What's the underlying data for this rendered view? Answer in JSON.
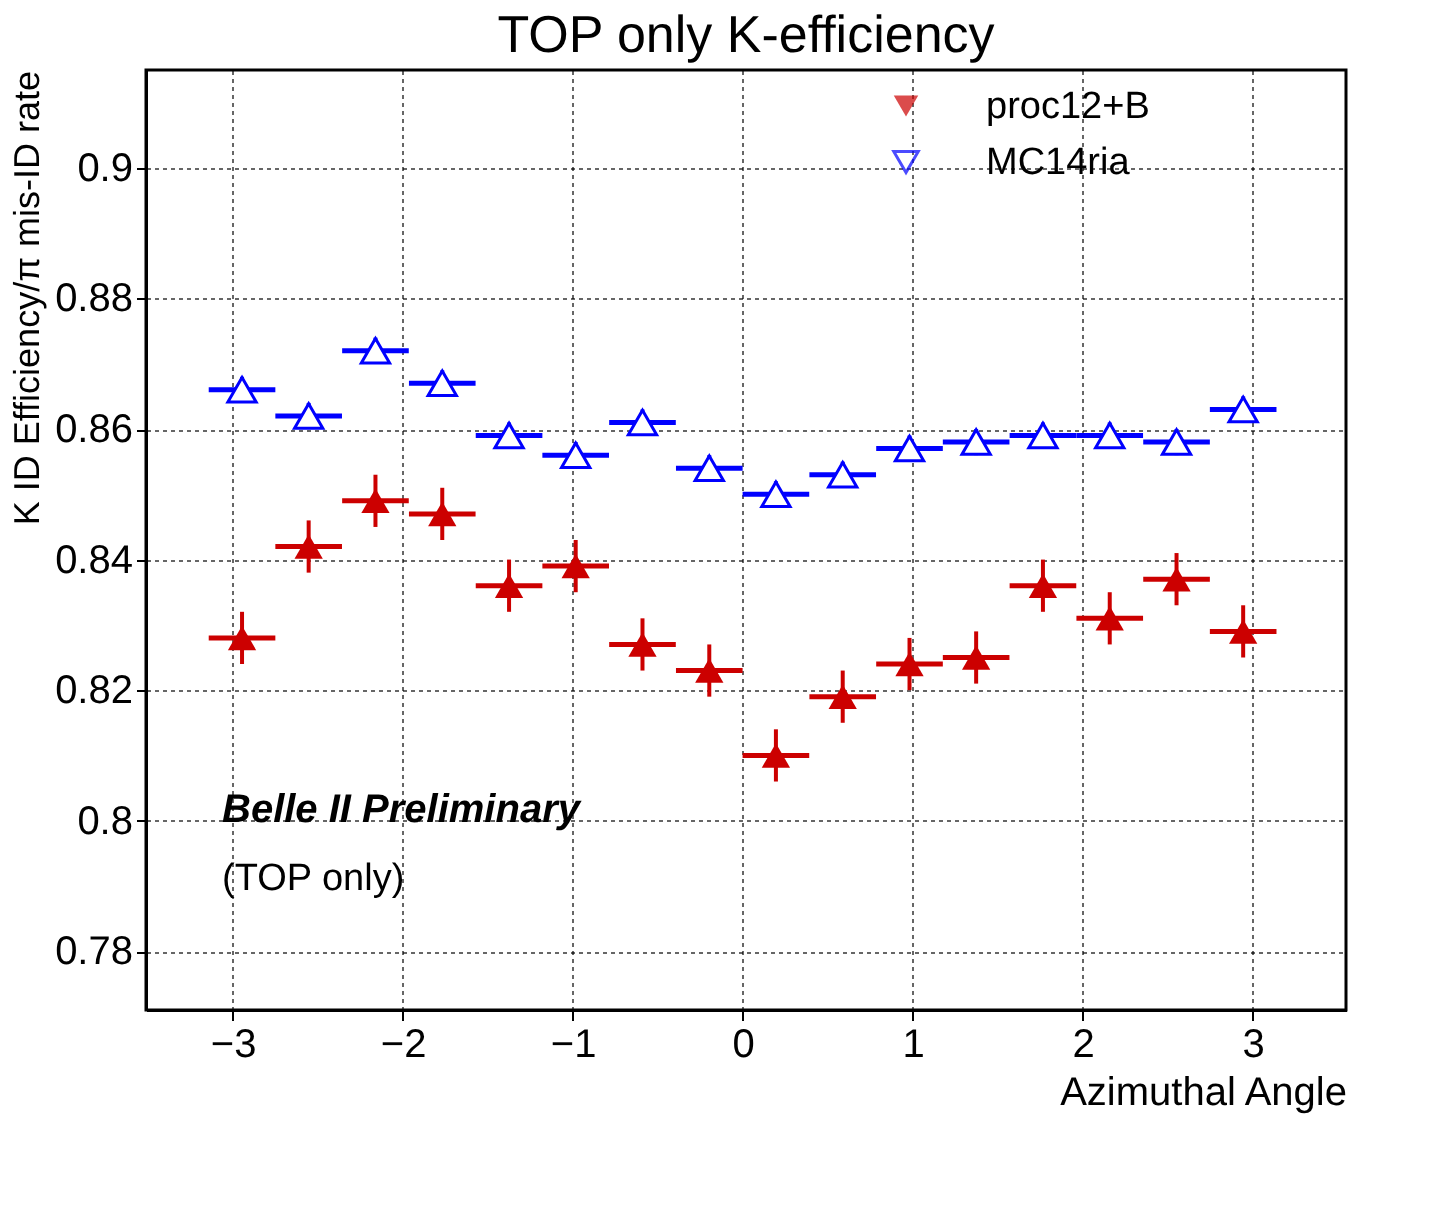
{
  "chart_data": {
    "type": "scatter",
    "title": "TOP only K-efficiency",
    "xlabel": "Azimuthal Angle",
    "ylabel": "K ID Efficiency/π mis-ID rate",
    "x": [
      -2.945,
      -2.553,
      -2.16,
      -1.767,
      -1.374,
      -0.982,
      -0.589,
      -0.196,
      0.196,
      0.589,
      0.982,
      1.374,
      1.767,
      2.16,
      2.553,
      2.945
    ],
    "series": [
      {
        "name": "proc12+B",
        "color": "#cc0000",
        "values": [
          0.828,
          0.842,
          0.849,
          0.847,
          0.836,
          0.839,
          0.827,
          0.823,
          0.81,
          0.819,
          0.824,
          0.825,
          0.836,
          0.831,
          0.837,
          0.829
        ],
        "errors": [
          0.004,
          0.004,
          0.004,
          0.004,
          0.004,
          0.004,
          0.004,
          0.004,
          0.004,
          0.004,
          0.004,
          0.004,
          0.004,
          0.004,
          0.004,
          0.004
        ],
        "xerrors": [
          0.196,
          0.196,
          0.196,
          0.196,
          0.196,
          0.196,
          0.196,
          0.196,
          0.196,
          0.196,
          0.196,
          0.196,
          0.196,
          0.196,
          0.196,
          0.196
        ]
      },
      {
        "name": "MC14ria",
        "color": "#0000ff",
        "values": [
          0.866,
          0.862,
          0.872,
          0.867,
          0.859,
          0.856,
          0.861,
          0.854,
          0.85,
          0.853,
          0.857,
          0.858,
          0.859,
          0.859,
          0.858,
          0.863
        ],
        "errors": [
          0.002,
          0.002,
          0.002,
          0.002,
          0.002,
          0.002,
          0.002,
          0.002,
          0.002,
          0.002,
          0.002,
          0.002,
          0.002,
          0.002,
          0.002,
          0.002
        ],
        "xerrors": [
          0.196,
          0.196,
          0.196,
          0.196,
          0.196,
          0.196,
          0.196,
          0.196,
          0.196,
          0.196,
          0.196,
          0.196,
          0.196,
          0.196,
          0.196,
          0.196
        ]
      }
    ],
    "xlim": [
      -3.51,
      3.55
    ],
    "ylim": [
      0.771,
      0.915
    ],
    "xticks": [
      -3,
      -2,
      -1,
      0,
      1,
      2,
      3
    ],
    "yticks": [
      0.78,
      0.8,
      0.82,
      0.84,
      0.86,
      0.88,
      0.9
    ],
    "grid": true,
    "marker": "triangle",
    "legend": "top right",
    "annotations": [
      "Belle II Preliminary",
      "(TOP only)"
    ]
  }
}
